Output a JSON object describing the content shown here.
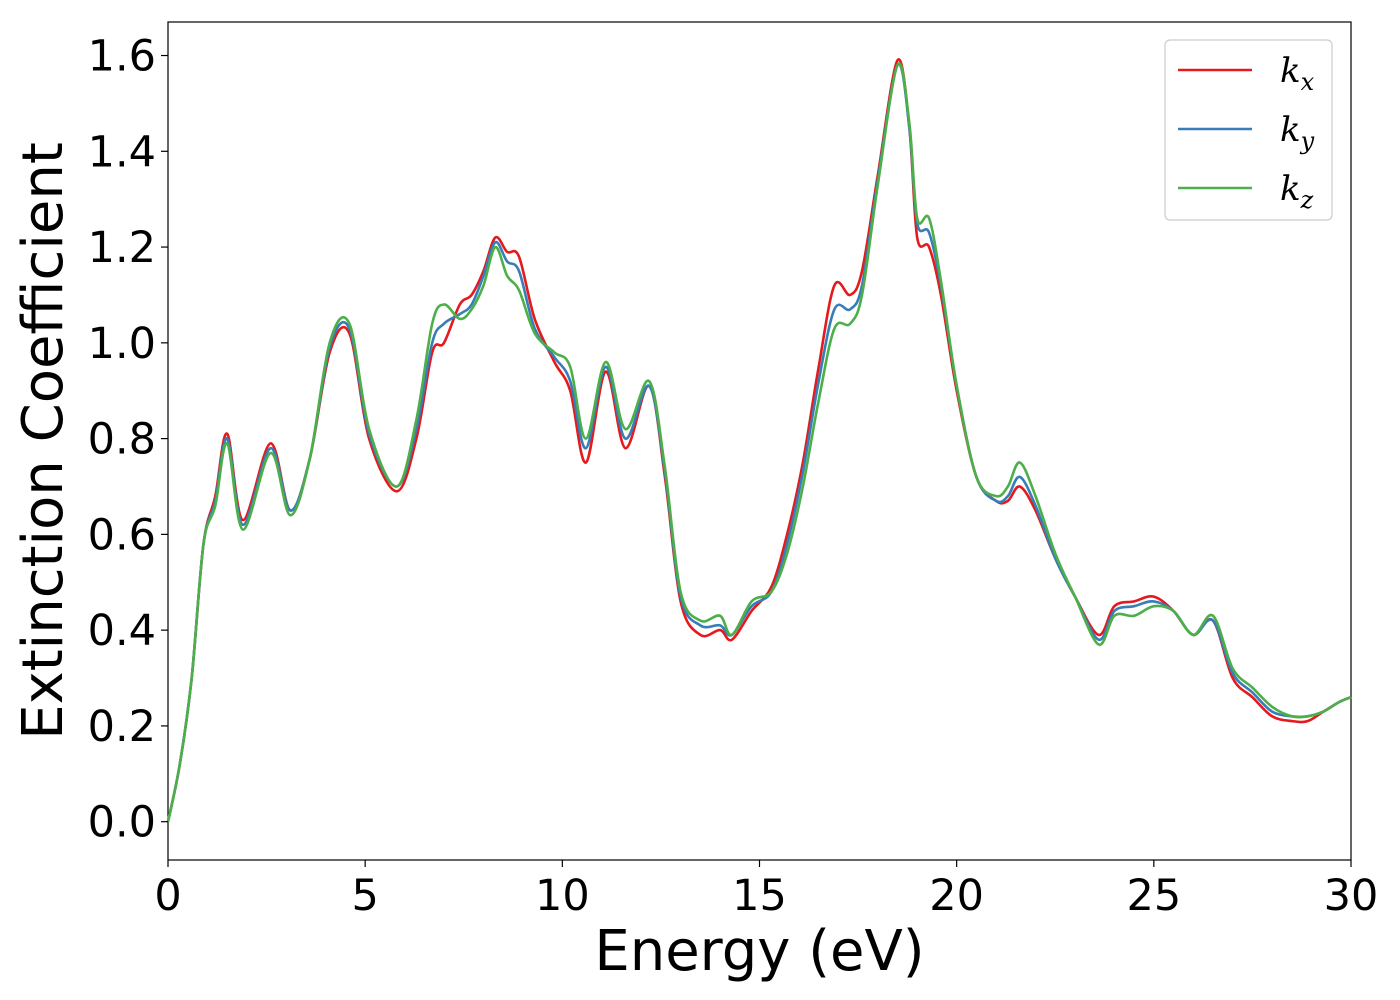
{
  "chart_data": {
    "type": "line",
    "title": "",
    "xlabel": "Energy (eV)",
    "ylabel": "Extinction Coefficient",
    "xlim": [
      0,
      30
    ],
    "ylim": [
      -0.08,
      1.67
    ],
    "xticks": [
      0,
      5,
      10,
      15,
      20,
      25,
      30
    ],
    "xtick_labels": [
      "0",
      "5",
      "10",
      "15",
      "20",
      "25",
      "30"
    ],
    "yticks": [
      0.0,
      0.2,
      0.4,
      0.6,
      0.8,
      1.0,
      1.2,
      1.4,
      1.6
    ],
    "ytick_labels": [
      "0.0",
      "0.2",
      "0.4",
      "0.6",
      "0.8",
      "1.0",
      "1.2",
      "1.4",
      "1.6"
    ],
    "grid": false,
    "legend_position": "top-right",
    "series": [
      {
        "name": "k",
        "subscript": "x",
        "color": "#e41a1c",
        "x": [
          0,
          0.3,
          0.6,
          0.9,
          1.2,
          1.5,
          1.9,
          2.6,
          3.1,
          3.6,
          4.1,
          4.6,
          5.1,
          5.8,
          6.3,
          6.7,
          7.0,
          7.4,
          7.7,
          8.0,
          8.3,
          8.6,
          8.9,
          9.3,
          9.8,
          10.2,
          10.6,
          11.1,
          11.6,
          12.2,
          12.6,
          13.0,
          13.5,
          14.0,
          14.3,
          14.8,
          15.3,
          15.7,
          16.1,
          16.5,
          16.9,
          17.3,
          17.6,
          18.0,
          18.5,
          18.8,
          19.0,
          19.3,
          19.6,
          20.0,
          20.5,
          21.0,
          21.3,
          21.6,
          22.0,
          22.5,
          23.0,
          23.6,
          24.0,
          24.5,
          25.0,
          25.5,
          26.0,
          26.5,
          27.0,
          27.5,
          28.0,
          28.5,
          28.9,
          29.3,
          29.7,
          30.0
        ],
        "y": [
          0.0,
          0.12,
          0.3,
          0.58,
          0.68,
          0.81,
          0.63,
          0.79,
          0.65,
          0.76,
          0.98,
          1.02,
          0.8,
          0.69,
          0.8,
          0.98,
          1.0,
          1.08,
          1.1,
          1.15,
          1.22,
          1.19,
          1.18,
          1.05,
          0.96,
          0.9,
          0.75,
          0.94,
          0.78,
          0.91,
          0.72,
          0.46,
          0.39,
          0.4,
          0.38,
          0.44,
          0.49,
          0.6,
          0.75,
          0.95,
          1.12,
          1.1,
          1.15,
          1.35,
          1.59,
          1.45,
          1.22,
          1.2,
          1.1,
          0.9,
          0.72,
          0.67,
          0.67,
          0.7,
          0.65,
          0.55,
          0.47,
          0.39,
          0.45,
          0.46,
          0.47,
          0.44,
          0.39,
          0.42,
          0.3,
          0.26,
          0.22,
          0.21,
          0.21,
          0.23,
          0.25,
          0.26
        ]
      },
      {
        "name": "k",
        "subscript": "y",
        "color": "#377eb8",
        "x": [
          0,
          0.3,
          0.6,
          0.9,
          1.2,
          1.5,
          1.9,
          2.6,
          3.1,
          3.6,
          4.1,
          4.6,
          5.1,
          5.8,
          6.3,
          6.7,
          7.0,
          7.4,
          7.7,
          8.0,
          8.3,
          8.6,
          8.9,
          9.3,
          9.8,
          10.2,
          10.6,
          11.1,
          11.6,
          12.2,
          12.6,
          13.0,
          13.5,
          14.0,
          14.3,
          14.8,
          15.3,
          15.7,
          16.1,
          16.5,
          16.9,
          17.3,
          17.6,
          18.0,
          18.5,
          18.8,
          19.0,
          19.3,
          19.6,
          20.0,
          20.5,
          21.0,
          21.3,
          21.6,
          22.0,
          22.5,
          23.0,
          23.6,
          24.0,
          24.5,
          25.0,
          25.5,
          26.0,
          26.5,
          27.0,
          27.5,
          28.0,
          28.5,
          28.9,
          29.3,
          29.7,
          30.0
        ],
        "y": [
          0.0,
          0.12,
          0.3,
          0.58,
          0.67,
          0.8,
          0.62,
          0.78,
          0.65,
          0.76,
          0.99,
          1.03,
          0.81,
          0.7,
          0.82,
          1.0,
          1.04,
          1.06,
          1.08,
          1.14,
          1.21,
          1.17,
          1.15,
          1.03,
          0.97,
          0.92,
          0.78,
          0.95,
          0.8,
          0.91,
          0.73,
          0.47,
          0.41,
          0.41,
          0.39,
          0.45,
          0.48,
          0.58,
          0.73,
          0.92,
          1.07,
          1.07,
          1.12,
          1.34,
          1.58,
          1.45,
          1.25,
          1.23,
          1.12,
          0.91,
          0.72,
          0.67,
          0.68,
          0.72,
          0.66,
          0.55,
          0.47,
          0.38,
          0.44,
          0.45,
          0.46,
          0.44,
          0.39,
          0.42,
          0.31,
          0.27,
          0.23,
          0.22,
          0.22,
          0.23,
          0.25,
          0.26
        ]
      },
      {
        "name": "k",
        "subscript": "z",
        "color": "#4daf4a",
        "x": [
          0,
          0.3,
          0.6,
          0.9,
          1.2,
          1.5,
          1.9,
          2.6,
          3.1,
          3.6,
          4.1,
          4.6,
          5.1,
          5.8,
          6.3,
          6.7,
          7.0,
          7.4,
          7.7,
          8.0,
          8.3,
          8.6,
          8.9,
          9.3,
          9.8,
          10.2,
          10.6,
          11.1,
          11.6,
          12.2,
          12.6,
          13.0,
          13.5,
          14.0,
          14.3,
          14.8,
          15.3,
          15.7,
          16.1,
          16.5,
          16.9,
          17.3,
          17.6,
          18.0,
          18.5,
          18.8,
          19.0,
          19.3,
          19.6,
          20.0,
          20.5,
          21.0,
          21.3,
          21.6,
          22.0,
          22.5,
          23.0,
          23.6,
          24.0,
          24.5,
          25.0,
          25.5,
          26.0,
          26.5,
          27.0,
          27.5,
          28.0,
          28.5,
          28.9,
          29.3,
          29.7,
          30.0
        ],
        "y": [
          0.0,
          0.12,
          0.3,
          0.58,
          0.66,
          0.79,
          0.61,
          0.77,
          0.64,
          0.76,
          1.0,
          1.04,
          0.82,
          0.7,
          0.84,
          1.04,
          1.08,
          1.05,
          1.07,
          1.12,
          1.2,
          1.14,
          1.11,
          1.02,
          0.98,
          0.95,
          0.8,
          0.96,
          0.82,
          0.92,
          0.74,
          0.48,
          0.42,
          0.43,
          0.39,
          0.46,
          0.48,
          0.56,
          0.7,
          0.88,
          1.03,
          1.04,
          1.1,
          1.33,
          1.58,
          1.46,
          1.26,
          1.26,
          1.13,
          0.91,
          0.72,
          0.68,
          0.7,
          0.75,
          0.68,
          0.56,
          0.47,
          0.37,
          0.43,
          0.43,
          0.45,
          0.44,
          0.39,
          0.43,
          0.32,
          0.28,
          0.24,
          0.22,
          0.22,
          0.23,
          0.25,
          0.26
        ]
      }
    ]
  }
}
